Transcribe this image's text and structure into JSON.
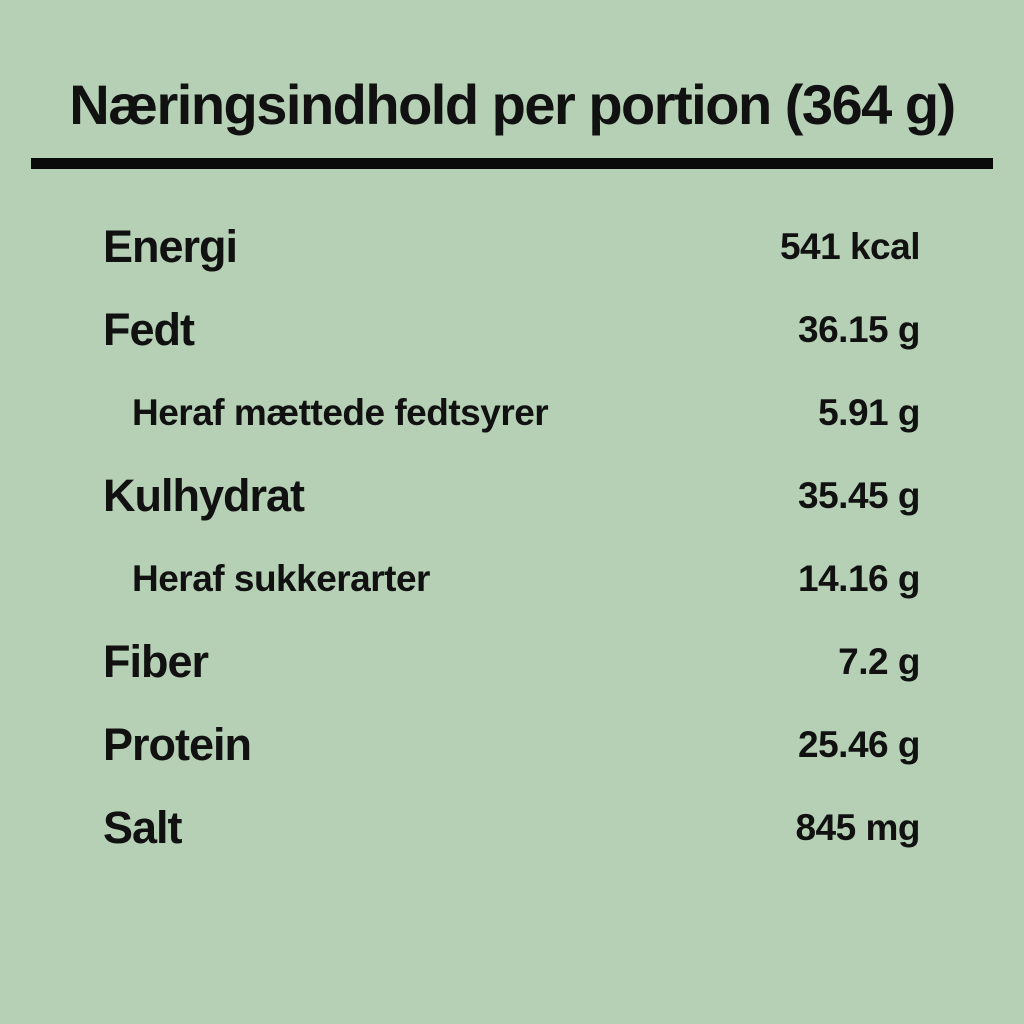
{
  "page": {
    "background_color": "#b6d0b5",
    "text_color": "#101110",
    "divider_color": "#0a0a0a"
  },
  "header": {
    "title": "Næringsindhold per portion (364 g)"
  },
  "nutrition": {
    "rows": [
      {
        "label": "Energi",
        "value": "541 kcal",
        "indent": false
      },
      {
        "label": "Fedt",
        "value": "36.15 g",
        "indent": false
      },
      {
        "label": "Heraf mættede fedtsyrer",
        "value": "5.91 g",
        "indent": true
      },
      {
        "label": "Kulhydrat",
        "value": "35.45 g",
        "indent": false
      },
      {
        "label": "Heraf sukkerarter",
        "value": "14.16 g",
        "indent": true
      },
      {
        "label": "Fiber",
        "value": "7.2 g",
        "indent": false
      },
      {
        "label": "Protein",
        "value": "25.46 g",
        "indent": false
      },
      {
        "label": "Salt",
        "value": "845 mg",
        "indent": false
      }
    ]
  }
}
